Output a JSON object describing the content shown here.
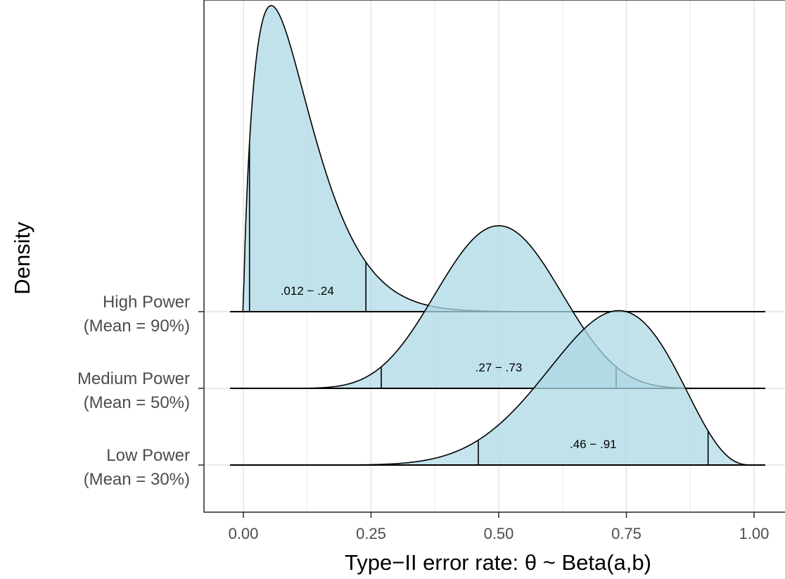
{
  "chart_data": {
    "type": "ridgeline-density",
    "title": "",
    "xlabel": "Type−II error rate: θ ~ Beta(a,b)",
    "ylabel": "Density",
    "xlim": [
      -0.06,
      1.04
    ],
    "x_ticks": [
      0.0,
      0.25,
      0.5,
      0.75,
      1.0
    ],
    "x_tick_labels": [
      "0.00",
      "0.25",
      "0.50",
      "0.75",
      "1.00"
    ],
    "grid": true,
    "fill_color": "#add8e6",
    "fill_opacity": 0.7,
    "line_color": "#000000",
    "series": [
      {
        "name": "High Power",
        "subname": "(Mean = 90%)",
        "beta_a": 1.79,
        "beta_b": 14.7,
        "interval": [
          0.012,
          0.24
        ],
        "interval_label": ".012 − .24",
        "label_x": 0.125
      },
      {
        "name": "Medium Power",
        "subname": "(Mean = 50%)",
        "beta_a": 9.5,
        "beta_b": 9.5,
        "interval": [
          0.27,
          0.73
        ],
        "interval_label": ".27 − .73",
        "label_x": 0.5
      },
      {
        "name": "Low Power",
        "subname": "(Mean = 30%)",
        "beta_a": 9.6,
        "beta_b": 4.1,
        "interval": [
          0.46,
          0.91
        ],
        "interval_label": ".46 − .91",
        "label_x": 0.685
      }
    ]
  }
}
